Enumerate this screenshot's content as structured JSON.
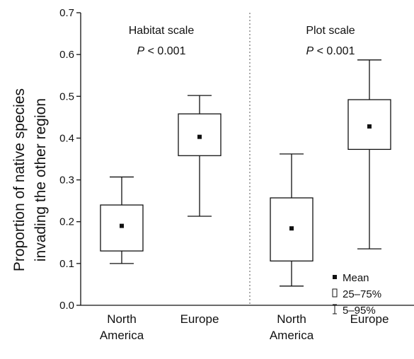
{
  "chart_data": {
    "type": "box",
    "ylabel_lines": [
      "Proportion of native species",
      "invading the other region"
    ],
    "ylim": [
      0,
      0.7
    ],
    "yticks": [
      "0.0",
      "0.1",
      "0.2",
      "0.3",
      "0.4",
      "0.5",
      "0.6",
      "0.7"
    ],
    "ytick_values": [
      0,
      0.1,
      0.2,
      0.3,
      0.4,
      0.5,
      0.6,
      0.7
    ],
    "panels": [
      {
        "title": "Habitat scale",
        "p_label": "P",
        "p_rest": " < 0.001",
        "boxes": [
          {
            "label_lines": [
              "North",
              "America"
            ],
            "mean": 0.19,
            "q1": 0.13,
            "q3": 0.24,
            "p5": 0.1,
            "p95": 0.307
          },
          {
            "label_lines": [
              "Europe"
            ],
            "mean": 0.403,
            "q1": 0.358,
            "q3": 0.458,
            "p5": 0.213,
            "p95": 0.502
          }
        ]
      },
      {
        "title": "Plot scale",
        "p_label": "P",
        "p_rest": " < 0.001",
        "boxes": [
          {
            "label_lines": [
              "North",
              "America"
            ],
            "mean": 0.184,
            "q1": 0.106,
            "q3": 0.257,
            "p5": 0.046,
            "p95": 0.362
          },
          {
            "label_lines": [
              "Europe"
            ],
            "mean": 0.428,
            "q1": 0.373,
            "q3": 0.492,
            "p5": 0.135,
            "p95": 0.587
          }
        ]
      }
    ],
    "legend": {
      "placement": "bottom-right",
      "items": [
        {
          "symbol": "mean-square",
          "label": "Mean"
        },
        {
          "symbol": "box",
          "label": "25–75%"
        },
        {
          "symbol": "whisker",
          "label": "5–95%"
        }
      ]
    },
    "colors": {
      "ink": "#111111",
      "divider": "#555555"
    }
  }
}
